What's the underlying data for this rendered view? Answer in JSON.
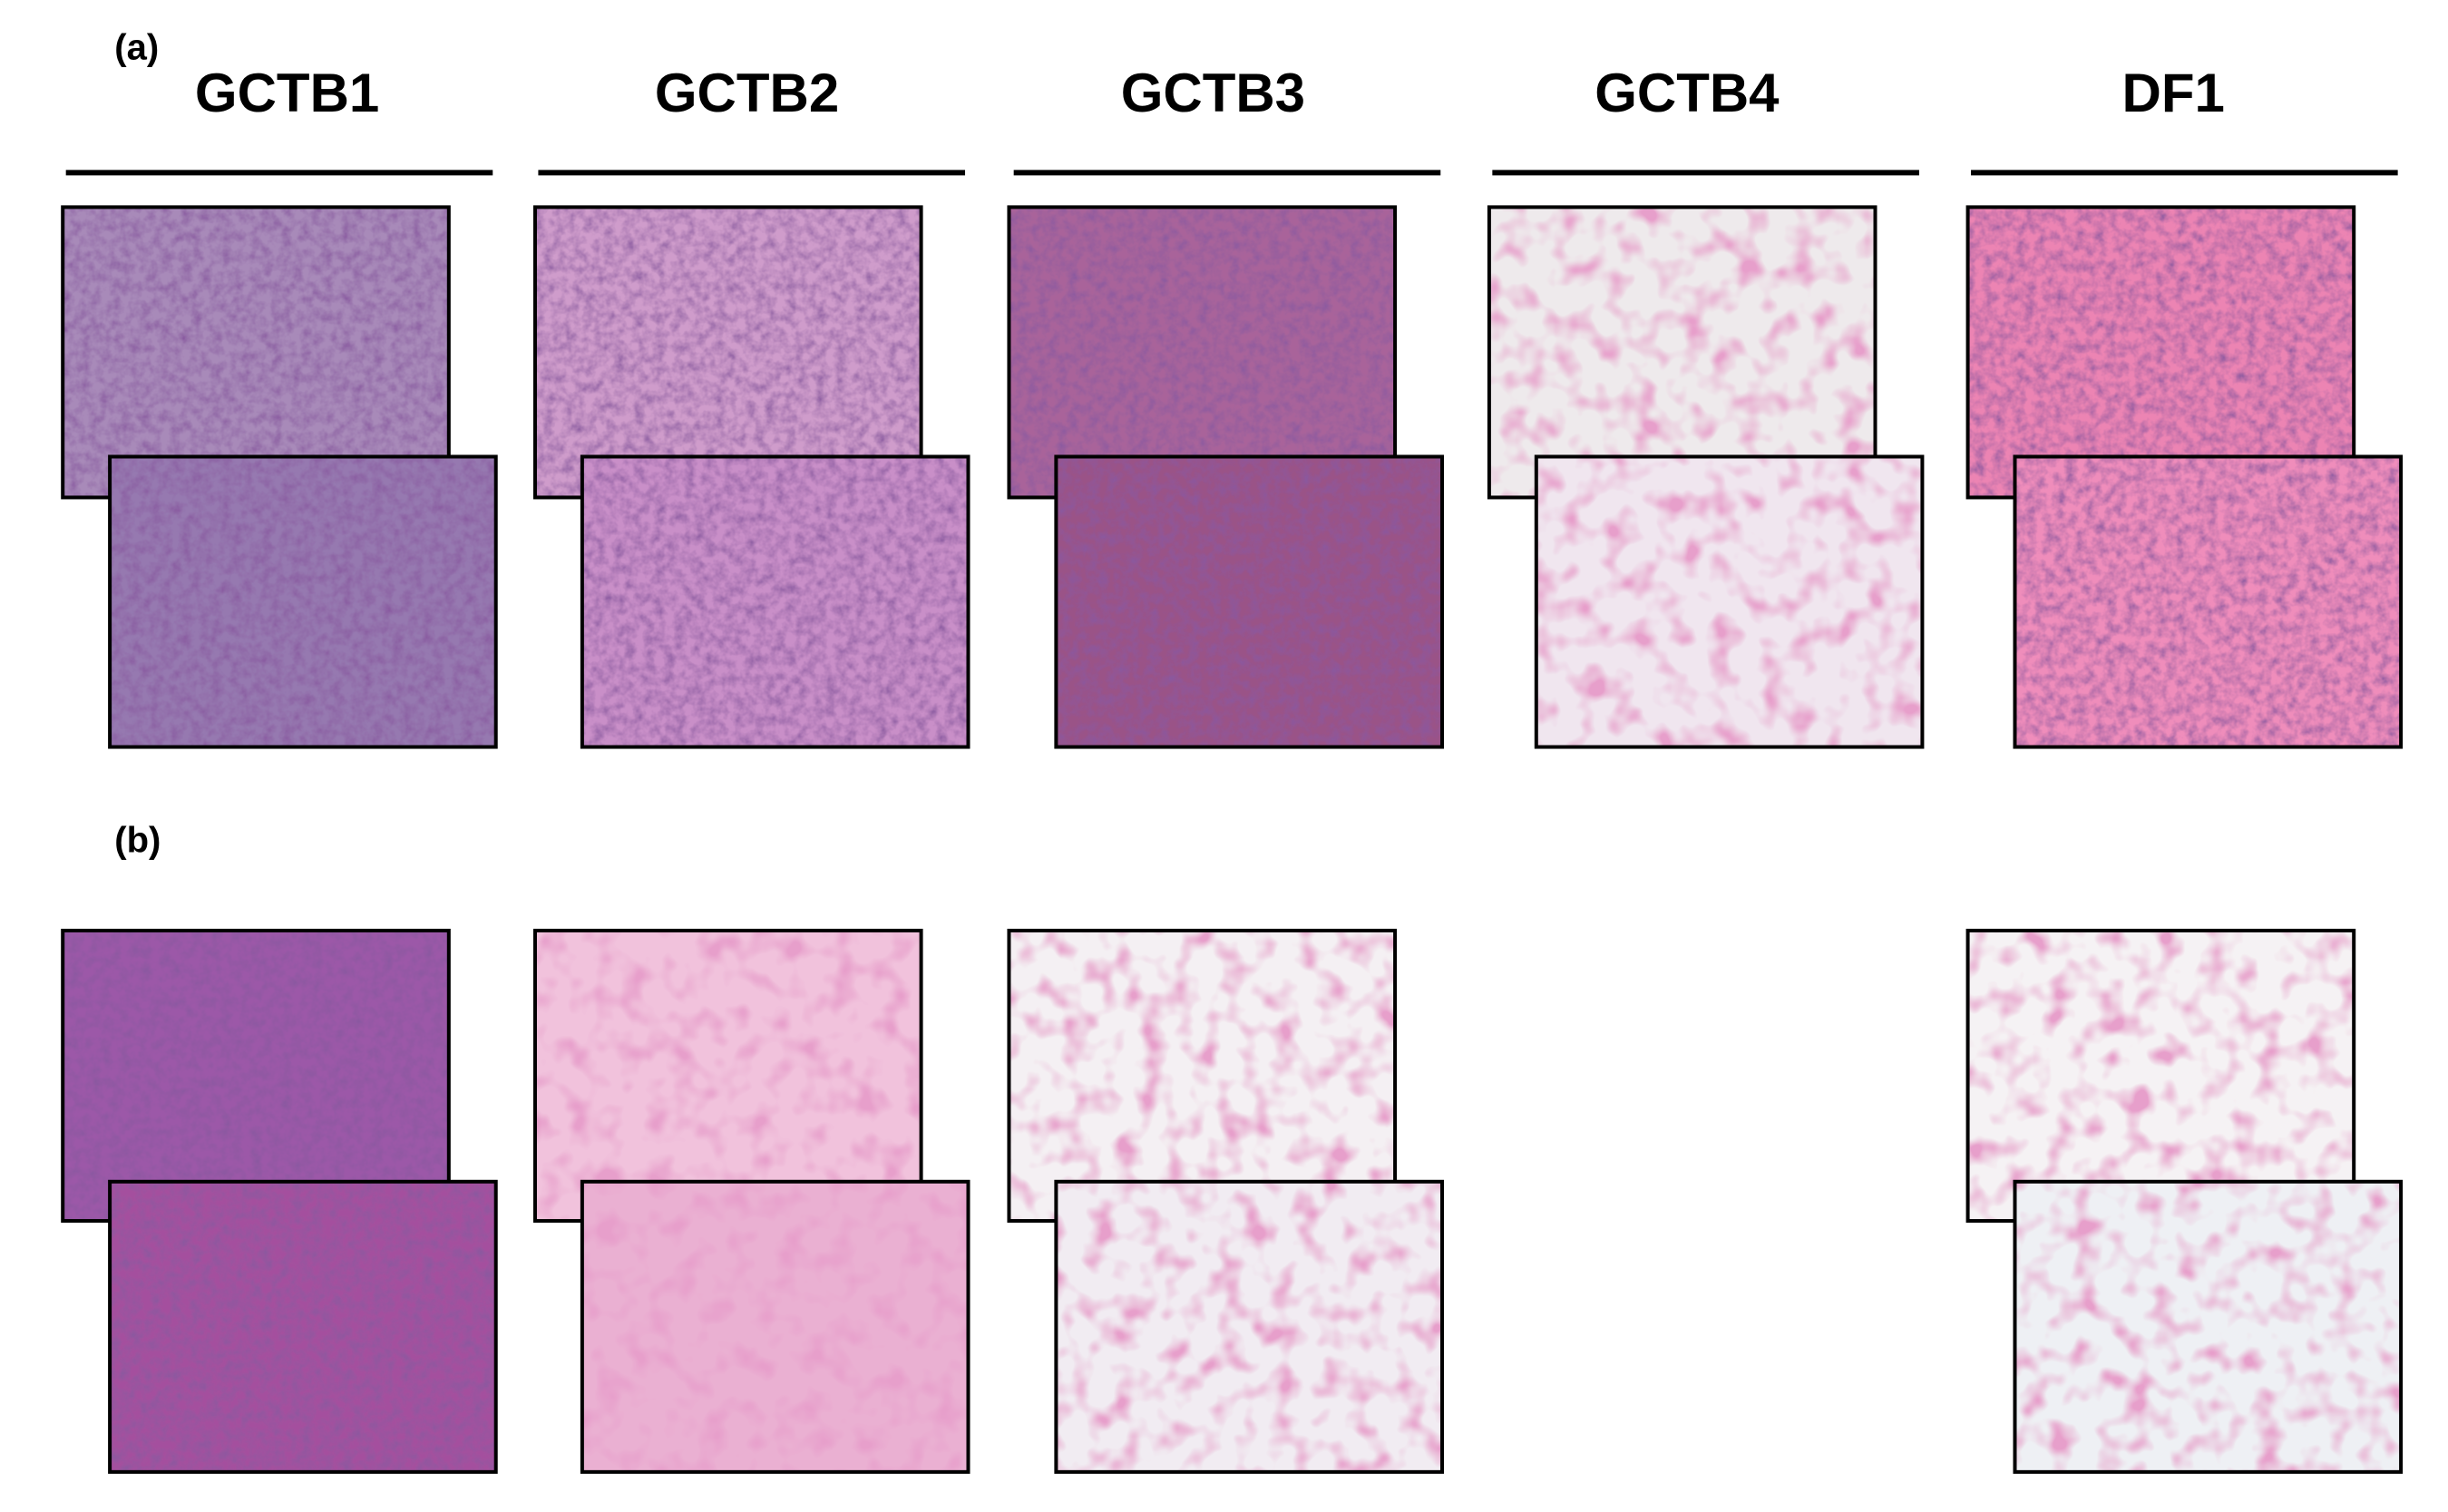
{
  "panel_labels": [
    "(a)",
    "(b)"
  ],
  "columns": [
    "GCTB1",
    "GCTB2",
    "GCTB3",
    "GCTB4",
    "DF1"
  ]
}
